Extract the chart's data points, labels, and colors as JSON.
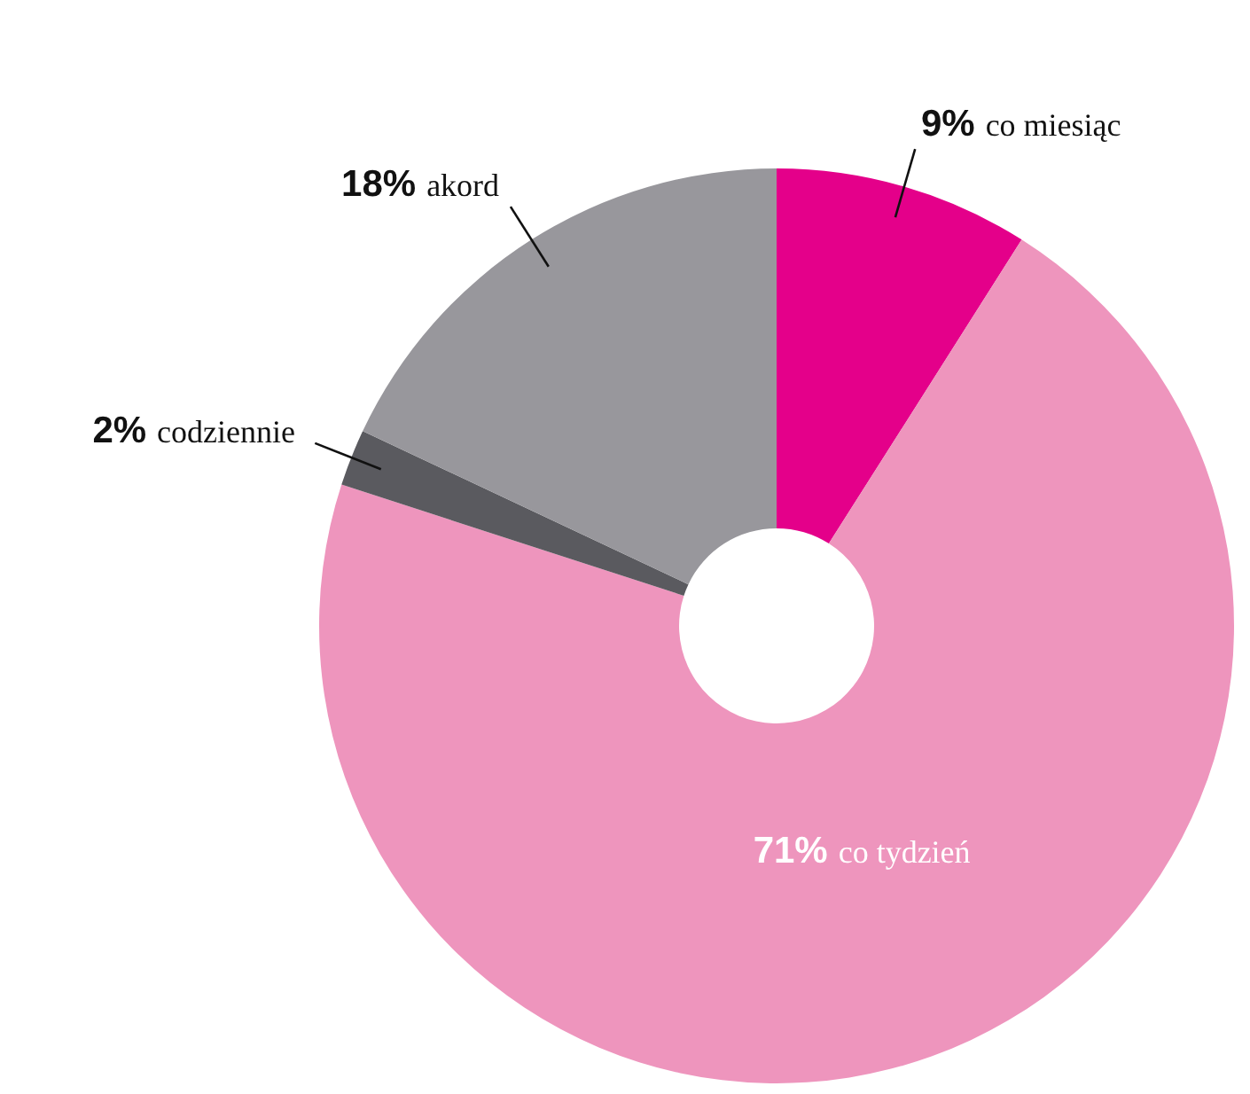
{
  "chart_data": {
    "type": "donut",
    "categories": [
      "co miesiąc",
      "co tydzień",
      "codziennie",
      "akord"
    ],
    "values": [
      9,
      71,
      2,
      18
    ],
    "value_labels": [
      "9%",
      "71%",
      "2%",
      "18%"
    ],
    "colors": [
      "#e4008a",
      "#ee95bd",
      "#5a5a5f",
      "#98979c"
    ]
  }
}
